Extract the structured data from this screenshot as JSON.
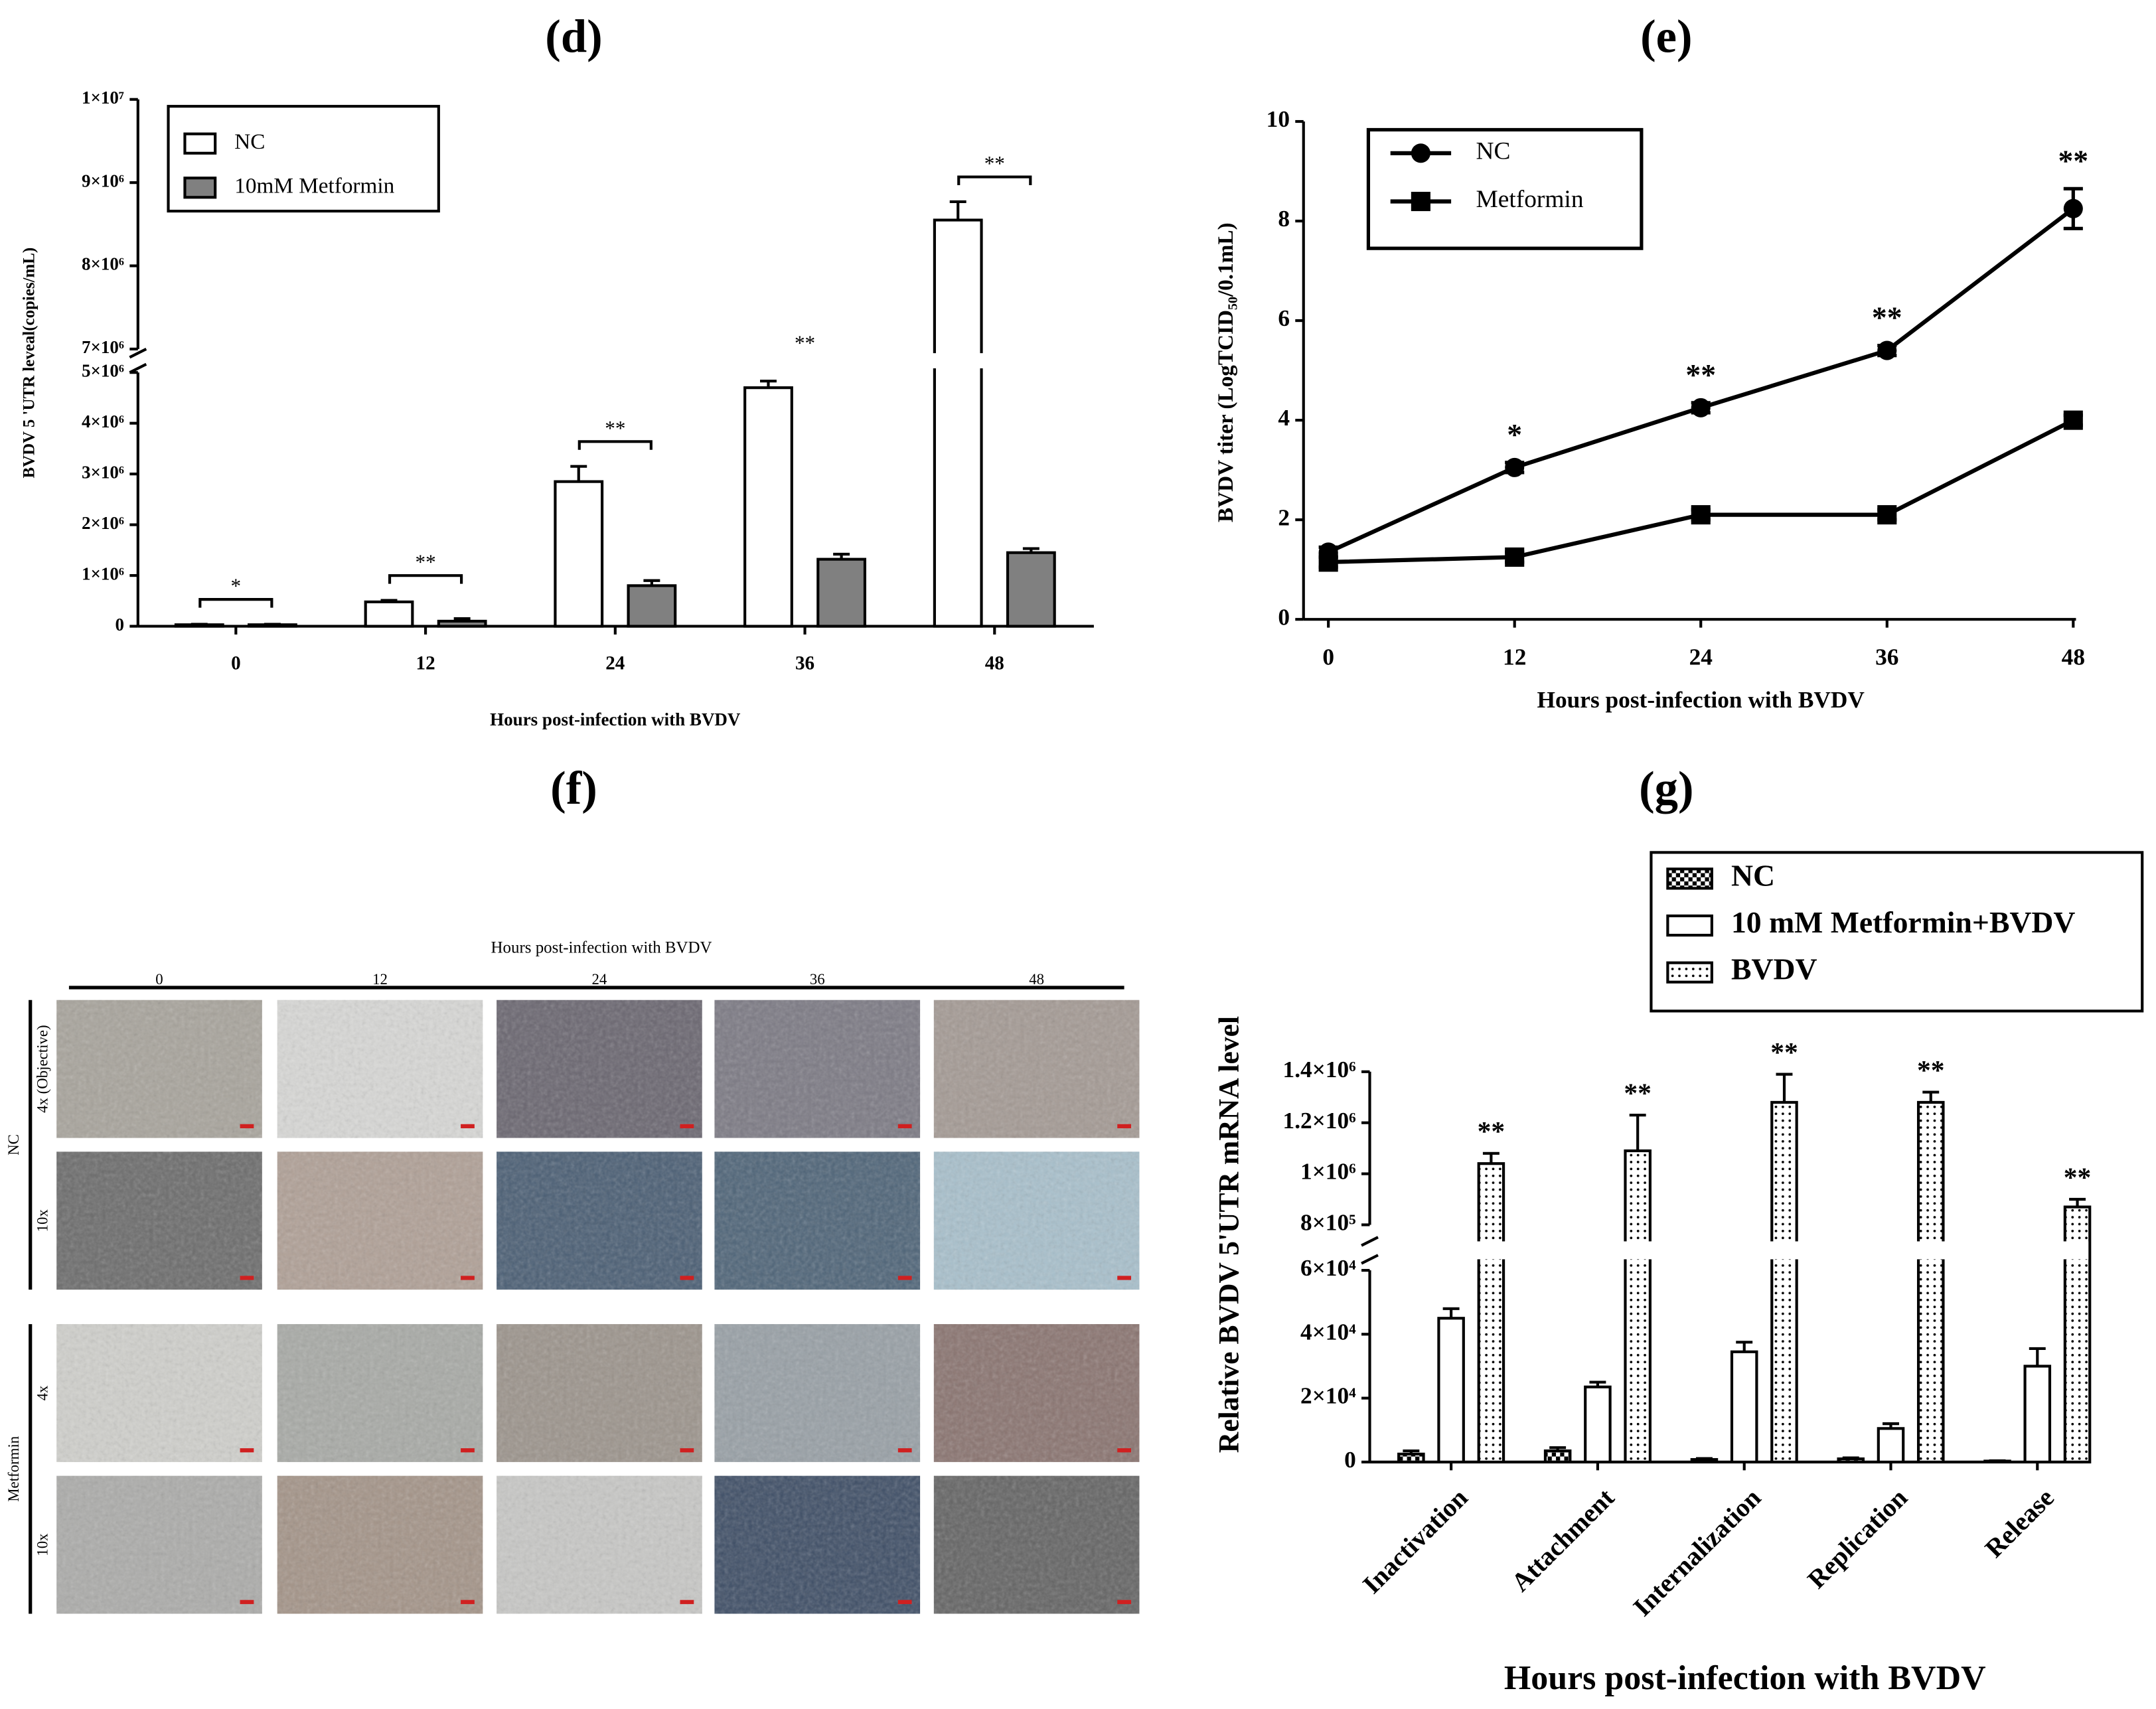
{
  "chart_data": [
    {
      "type": "bar",
      "panel_label": "(d)",
      "y_label": "BVDV 5 'UTR leveal(copies/mL)",
      "x_label": "Hours post-infection with BVDV",
      "categories": [
        "0",
        "12",
        "24",
        "36",
        "48"
      ],
      "series": [
        {
          "name": "NC",
          "color": "#ffffff",
          "values": [
            30000,
            480000,
            2850000,
            4700000,
            8550000
          ],
          "errors": [
            10000,
            30000,
            300000,
            130000,
            220000
          ]
        },
        {
          "name": "10mM Metformin",
          "color": "#808080",
          "values": [
            30000,
            100000,
            800000,
            1320000,
            1450000
          ],
          "errors": [
            10000,
            50000,
            100000,
            100000,
            80000
          ]
        }
      ],
      "significance": [
        "*",
        "**",
        "**",
        "**",
        "**"
      ],
      "y_segments": [
        {
          "ylim": [
            0,
            5000000
          ],
          "yticks": [
            0,
            {
              "value": 1000000,
              "label": "1×10⁶"
            },
            {
              "value": 2000000,
              "label": "2×10⁶"
            },
            {
              "value": 3000000,
              "label": "3×10⁶"
            },
            {
              "value": 4000000,
              "label": "4×10⁶"
            },
            {
              "value": 5000000,
              "label": "5×10⁶"
            }
          ]
        },
        {
          "ylim": [
            7000000,
            10000000
          ],
          "yticks": [
            {
              "value": 7000000,
              "label": "7×10⁶"
            },
            {
              "value": 8000000,
              "label": "8×10⁶"
            },
            {
              "value": 9000000,
              "label": "9×10⁶"
            },
            {
              "value": 10000000,
              "label": "1×10⁷"
            }
          ]
        }
      ],
      "legend": "upper left"
    },
    {
      "type": "line",
      "panel_label": "(e)",
      "y_label": "BVDV titer (LogTCID₅₀/0.1mL)",
      "x_label": "Hours post-infection with BVDV",
      "x": [
        0,
        12,
        24,
        36,
        48
      ],
      "xlim": [
        -1.6,
        48
      ],
      "xticks": [
        0,
        12,
        24,
        36,
        48
      ],
      "ylim": [
        0,
        10
      ],
      "yticks": [
        0,
        2,
        4,
        6,
        8,
        10
      ],
      "series": [
        {
          "name": "NC",
          "color": "#000000",
          "marker": "circle",
          "values": [
            1.35,
            3.05,
            4.25,
            5.4,
            8.25
          ],
          "errors": [
            0.1,
            0.1,
            0.1,
            0.1,
            0.4
          ]
        },
        {
          "name": "Metformin",
          "color": "#000000",
          "marker": "square",
          "values": [
            1.15,
            1.25,
            2.1,
            2.1,
            4.0
          ],
          "errors": [
            0.1,
            0.1,
            0.1,
            0.1,
            0.1
          ]
        }
      ],
      "significance": [
        null,
        "*",
        "**",
        "**",
        "**"
      ],
      "legend": "upper left"
    },
    {
      "type": "image_grid",
      "panel_label": "(f)",
      "title": "Hours post-infection with BVDV",
      "columns": [
        "0",
        "12",
        "24",
        "36",
        "48"
      ],
      "groups": [
        {
          "name": "NC",
          "rows": [
            "4x (Objective)",
            "10x"
          ]
        },
        {
          "name": "Metformin",
          "rows": [
            "4x",
            "10x"
          ]
        }
      ]
    },
    {
      "type": "bar",
      "panel_label": "(g)",
      "y_label": "Relative BVDV 5'UTR mRNA level",
      "x_label": "Hours post-infection with BVDV",
      "categories": [
        "Inactivation",
        "Attachment",
        "Internalization",
        "Replication",
        "Release"
      ],
      "series": [
        {
          "name": "NC",
          "color": "#000000",
          "pattern": "checkered",
          "values": [
            2500,
            3500,
            800,
            1000,
            300
          ],
          "errors": [
            1000,
            1000,
            300,
            300,
            100
          ]
        },
        {
          "name": "10 mM Metformin+BVDV",
          "color": "#ffffff",
          "values": [
            45000,
            23500,
            34500,
            10500,
            30000
          ],
          "errors": [
            3000,
            1500,
            3000,
            1500,
            5500
          ]
        },
        {
          "name": "BVDV",
          "color": "#000000",
          "pattern": "dotted",
          "values": [
            1040000,
            1090000,
            1280000,
            1280000,
            870000
          ],
          "errors": [
            40000,
            140000,
            110000,
            40000,
            30000
          ]
        }
      ],
      "significance": [
        "**",
        "**",
        "**",
        "**",
        "**"
      ],
      "y_segments": [
        {
          "ylim": [
            0,
            60000
          ],
          "yticks": [
            0,
            {
              "value": 20000,
              "label": "2×10⁴"
            },
            {
              "value": 40000,
              "label": "4×10⁴"
            },
            {
              "value": 60000,
              "label": "6×10⁴"
            }
          ]
        },
        {
          "ylim": [
            800000,
            1400000
          ],
          "yticks": [
            {
              "value": 800000,
              "label": "8×10⁵"
            },
            {
              "value": 1000000,
              "label": "1×10⁶"
            },
            {
              "value": 1200000,
              "label": "1.2×10⁶"
            },
            {
              "value": 1400000,
              "label": "1.4×10⁶"
            }
          ]
        }
      ],
      "legend": "upper right"
    }
  ]
}
